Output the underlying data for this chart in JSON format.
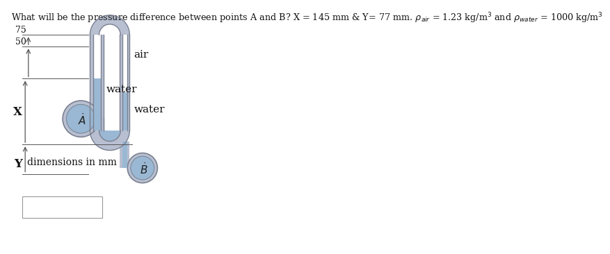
{
  "bg_color": "#ffffff",
  "tube_color": "#b8bfd0",
  "tube_outline": "#7a8090",
  "water_color": "#9ab8d4",
  "water_outline": "#7a8898",
  "dim_line_color": "#555555",
  "text_color": "#111111",
  "label_75": "75",
  "label_50": "50",
  "label_X": "X",
  "label_Y": "Y",
  "label_air": "air",
  "label_water_left": "water",
  "label_water_right": "water",
  "label_A": "A",
  "label_B": "B",
  "label_dim": "dimensions in mm",
  "box_color": "#ffffff",
  "box_edge": "#aaaaaa",
  "title": "What will be the pressure difference between points A and B? X = 145 mm & Y= 77 mm. $\\rho_{air}$ = 1.23 kg/m$^3$ and $\\rho_{water}$ = 1000 kg/m$^3$"
}
